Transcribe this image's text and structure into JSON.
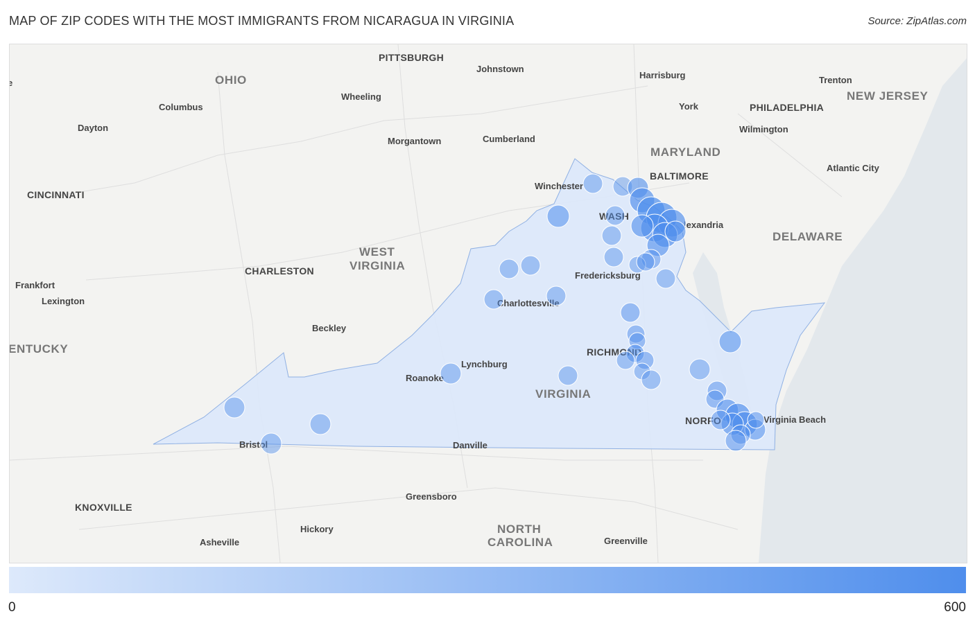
{
  "header": {
    "title": "MAP OF ZIP CODES WITH THE MOST IMMIGRANTS FROM NICARAGUA IN VIRGINIA",
    "source": "Source: ZipAtlas.com"
  },
  "legend": {
    "min": "0",
    "max": "600",
    "color_low": "#dde9fb",
    "color_high": "#4f8eec"
  },
  "colors": {
    "state_fill": "#dbe8fb",
    "state_stroke": "#8fb0e3",
    "bubble": "#4f8eec",
    "land": "#f3f3f1",
    "road": "#d9d9d9"
  },
  "map": {
    "state_labels": [
      "OHIO",
      "WEST",
      "VIRGINIA",
      "MARYLAND",
      "NEW JERSEY",
      "DELAWARE",
      "VIRGINIA",
      "NORTH",
      "CAROLINA",
      "ENTUCKY"
    ],
    "city_labels": [
      "PITTSBURGH",
      "Johnstown",
      "Harrisburg",
      "Trenton",
      "Wheeling",
      "Columbus",
      "Dayton",
      "York",
      "PHILADELPHIA",
      "Wilmington",
      "Cumberland",
      "Morgantown",
      "BALTIMORE",
      "Atlantic City",
      "Winchester",
      "CINCINNATI",
      "WASH",
      "lexandria",
      "CHARLESTON",
      "Frankfort",
      "Lexington",
      "Fredericksburg",
      "Charlottesville",
      "Beckley",
      "RICHMOND",
      "Lynchburg",
      "Roanoke",
      "NORFO",
      "Virginia Beach",
      "Bristol",
      "Danville",
      "Greensboro",
      "KNOXVILLE",
      "Hickory",
      "Asheville",
      "Greenville",
      "e"
    ]
  }
}
